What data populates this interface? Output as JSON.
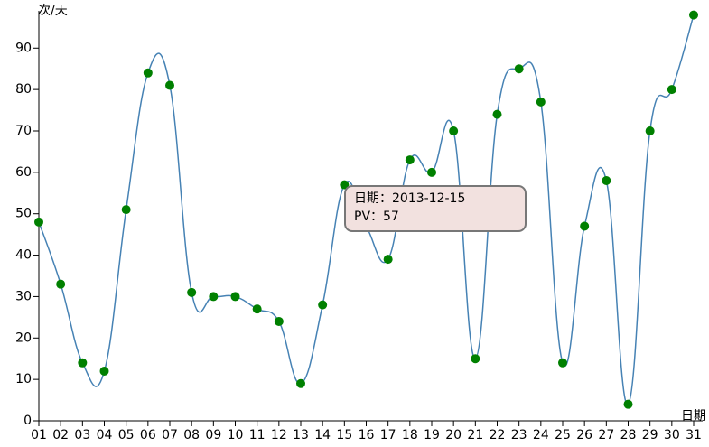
{
  "chart_data": {
    "type": "line",
    "y_label": "次/天",
    "x_label": "日期",
    "categories": [
      "01",
      "02",
      "03",
      "04",
      "05",
      "06",
      "07",
      "08",
      "09",
      "10",
      "11",
      "12",
      "13",
      "14",
      "15",
      "16",
      "17",
      "18",
      "19",
      "20",
      "21",
      "22",
      "23",
      "24",
      "25",
      "26",
      "27",
      "28",
      "29",
      "30",
      "31"
    ],
    "values": [
      48,
      33,
      14,
      12,
      51,
      84,
      81,
      31,
      30,
      30,
      27,
      24,
      9,
      28,
      57,
      47,
      39,
      63,
      60,
      70,
      15,
      74,
      85,
      77,
      14,
      47,
      58,
      4,
      70,
      80,
      98
    ],
    "line_color": "#4682b4",
    "point_color": "#008000",
    "ylim": [
      0,
      99
    ],
    "yticks": [
      0,
      10,
      20,
      30,
      40,
      50,
      60,
      70,
      80,
      90
    ],
    "tooltip": {
      "lines": [
        "日期：2013-12-15",
        "PV：57"
      ]
    }
  }
}
